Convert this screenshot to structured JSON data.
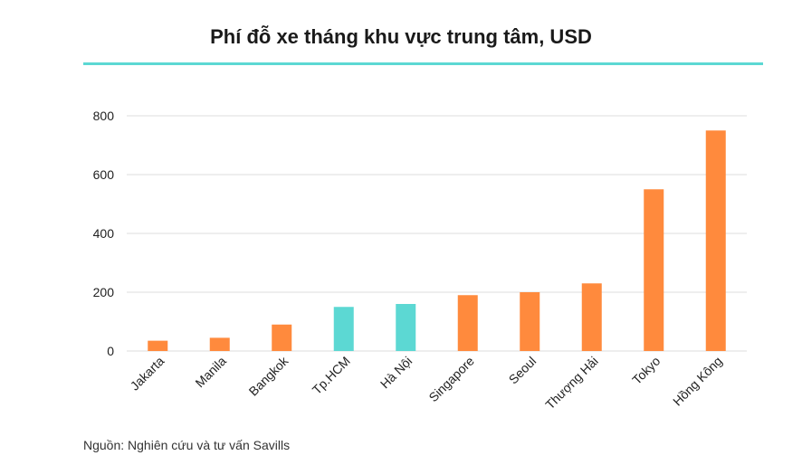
{
  "chart_data": {
    "type": "bar",
    "title": "Phí đỗ xe tháng khu vực trung tâm, USD",
    "categories": [
      "Jakarta",
      "Manila",
      "Bangkok",
      "Tp.HCM",
      "Hà Nội",
      "Singapore",
      "Seoul",
      "Thượng Hải",
      "Tokyo",
      "Hồng Kông"
    ],
    "values": [
      35,
      45,
      90,
      150,
      160,
      190,
      200,
      230,
      550,
      750
    ],
    "highlight": [
      "Tp.HCM",
      "Hà Nội"
    ],
    "ylim": [
      0,
      800
    ],
    "yticks": [
      0,
      200,
      400,
      600,
      800
    ],
    "xlabel": "",
    "ylabel": "",
    "grid": true,
    "colors": {
      "bar": "#ff8a3d",
      "highlight": "#5cd8d3",
      "rule": "#5cd8d3",
      "grid": "#dddddd"
    }
  },
  "source": "Nguồn: Nghiên cứu và tư vấn Savills"
}
